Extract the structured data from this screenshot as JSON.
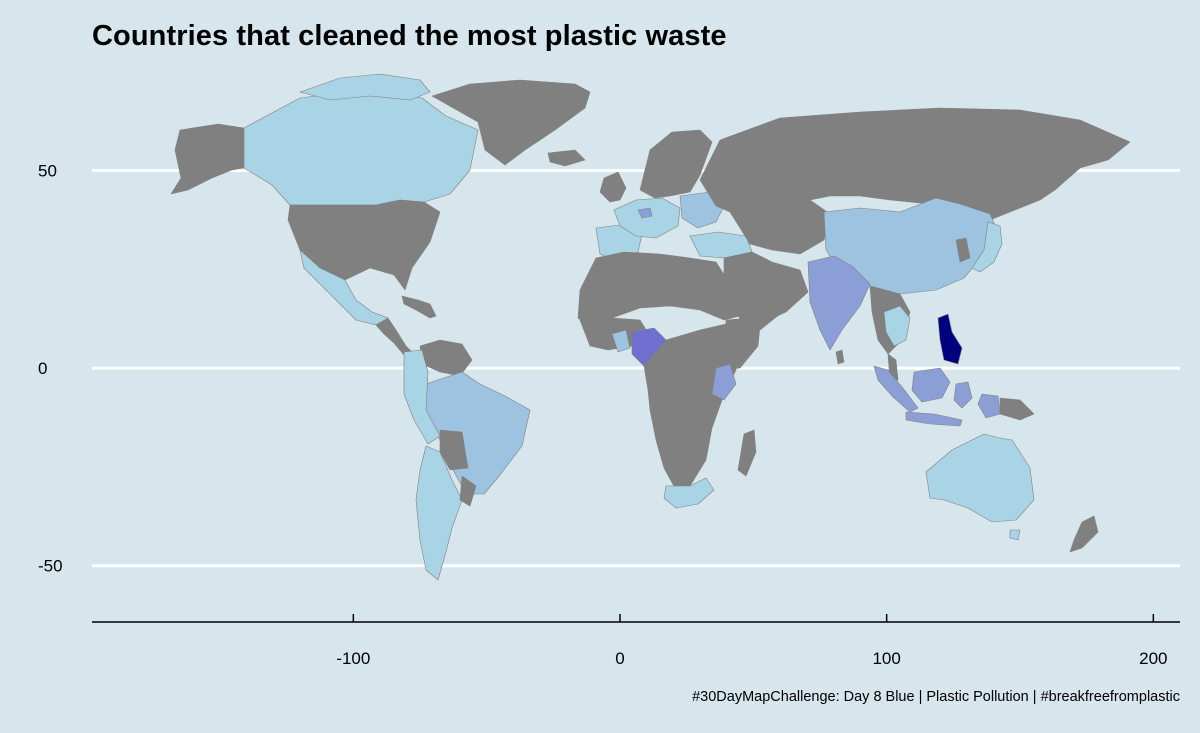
{
  "title": "Countries that cleaned the most plastic waste",
  "caption": "#30DayMapChallenge: Day 8 Blue | Plastic Pollution | #breakfreefromplastic",
  "colors": {
    "background": "#d7e5ec",
    "gridline": "#ffffff",
    "ocean": "#d7e5ec",
    "no_data_land": "#808080",
    "low": "#a8d4e6",
    "medium": "#9ec3e0",
    "high": "#8b9fd6",
    "very_high": "#6f6fcf",
    "highest": "#00007f"
  },
  "chart_data": {
    "type": "choropleth",
    "title": "Countries that cleaned the most plastic waste",
    "projection": "equirectangular",
    "xlim": [
      -198,
      210
    ],
    "ylim": [
      -65,
      83
    ],
    "x_ticks": [
      -100,
      0,
      100,
      200
    ],
    "x_tick_labels": [
      "-100",
      "0",
      "100",
      "200"
    ],
    "y_ticks": [
      50,
      0,
      -50
    ],
    "y_tick_labels": [
      "50",
      "0",
      "-50"
    ],
    "gridlines": "horizontal",
    "legend": "none"
  }
}
